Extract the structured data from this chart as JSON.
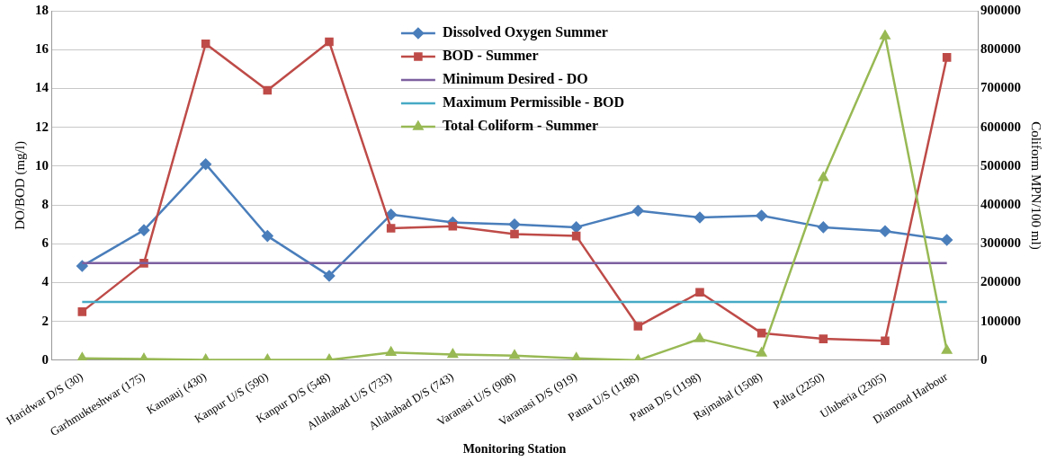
{
  "chart_data": {
    "type": "line",
    "xlabel": "Monitoring Station",
    "ylabel": "DO/BOD (mg/l)",
    "y2label": "Coliform MPN/100 ml)",
    "categories": [
      "Haridwar D/S (30)",
      "Garhmukteshwar (175)",
      "Kannauj (430)",
      "Kanpur U/S (590)",
      "Kanpur D/S (548)",
      "Allahabad U/S (733)",
      "Allahabad D/S (743)",
      "Varanasi U/S (908)",
      "Varanasi D/S (919)",
      "Patna U/S (1188)",
      "Patna D/S (1198)",
      "Rajmahal (1508)",
      "Palta (2250)",
      "Uluberia (2305)",
      "Diamond Harbour"
    ],
    "series": [
      {
        "name": "Dissolved Oxygen Summer",
        "color": "#4a7ebb",
        "marker": "diamond",
        "values": [
          4.85,
          6.7,
          10.1,
          6.4,
          4.35,
          7.5,
          7.1,
          7.0,
          6.85,
          7.7,
          7.35,
          7.45,
          6.85,
          6.65,
          6.2
        ]
      },
      {
        "name": "BOD - Summer",
        "color": "#be4b48",
        "marker": "square",
        "values": [
          2.5,
          5.0,
          16.3,
          13.9,
          16.4,
          6.8,
          6.9,
          6.5,
          6.4,
          1.75,
          3.5,
          1.4,
          1.1,
          1.0,
          15.6
        ]
      },
      {
        "name": "Minimum Desired - DO",
        "color": "#7d60a0",
        "marker": "none",
        "values": [
          5,
          5,
          5,
          5,
          5,
          5,
          5,
          5,
          5,
          5,
          5,
          5,
          5,
          5,
          5
        ]
      },
      {
        "name": "Maximum Permissible - BOD",
        "color": "#46aac5",
        "marker": "none",
        "values": [
          3,
          3,
          3,
          3,
          3,
          3,
          3,
          3,
          3,
          3,
          3,
          3,
          3,
          3,
          3
        ]
      },
      {
        "name": "Total Coliform - Summer",
        "color": "#98b954",
        "marker": "triangle",
        "axis": "y2",
        "values": [
          5000,
          3000,
          1000,
          1000,
          1000,
          20000,
          15000,
          12000,
          5000,
          0,
          55000,
          18000,
          470000,
          835000,
          25000
        ]
      }
    ],
    "ylim": [
      0,
      18
    ],
    "yticks": [
      0,
      2,
      4,
      6,
      8,
      10,
      12,
      14,
      16,
      18
    ],
    "y2lim": [
      0,
      900000
    ],
    "y2ticks": [
      0,
      100000,
      200000,
      300000,
      400000,
      500000,
      600000,
      700000,
      800000,
      900000
    ],
    "grid": "y",
    "legend": "top"
  }
}
